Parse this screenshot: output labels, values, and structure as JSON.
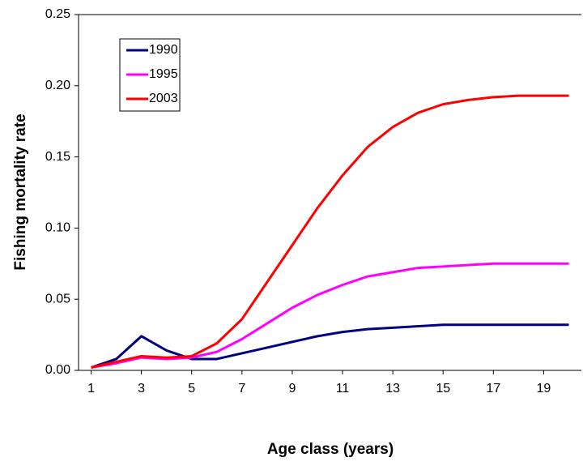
{
  "chart_data": {
    "type": "line",
    "x_label": "Age class (years)",
    "y_label": "Fishing mortality rate",
    "x": [
      1,
      2,
      3,
      4,
      5,
      6,
      7,
      8,
      9,
      10,
      11,
      12,
      13,
      14,
      15,
      16,
      17,
      18,
      19,
      20
    ],
    "xlim": [
      0.5,
      20.5
    ],
    "xticks": [
      1,
      3,
      5,
      7,
      9,
      11,
      13,
      15,
      17,
      19
    ],
    "ylim": [
      0,
      0.25
    ],
    "yticks": [
      {
        "value": 0,
        "label": "0.00"
      },
      {
        "value": 0.05,
        "label": "0.05"
      },
      {
        "value": 0.1,
        "label": "0.10"
      },
      {
        "value": 0.15,
        "label": "0.15"
      },
      {
        "value": 0.2,
        "label": "0.20"
      },
      {
        "value": 0.25,
        "label": "0.25"
      }
    ],
    "series": [
      {
        "name": "1990",
        "color": "#000080",
        "values": [
          0.002,
          0.008,
          0.024,
          0.014,
          0.008,
          0.008,
          0.012,
          0.016,
          0.02,
          0.024,
          0.027,
          0.029,
          0.03,
          0.031,
          0.032,
          0.032,
          0.032,
          0.032,
          0.032,
          0.032
        ]
      },
      {
        "name": "1995",
        "color": "#ff00ff",
        "values": [
          0.002,
          0.005,
          0.009,
          0.008,
          0.009,
          0.013,
          0.022,
          0.033,
          0.044,
          0.053,
          0.06,
          0.066,
          0.069,
          0.072,
          0.073,
          0.074,
          0.075,
          0.075,
          0.075,
          0.075
        ]
      },
      {
        "name": "2003",
        "color": "#ff0000",
        "values": [
          0.002,
          0.006,
          0.01,
          0.009,
          0.01,
          0.019,
          0.036,
          0.062,
          0.088,
          0.114,
          0.137,
          0.157,
          0.171,
          0.181,
          0.187,
          0.19,
          0.192,
          0.193,
          0.193,
          0.193
        ]
      }
    ]
  }
}
